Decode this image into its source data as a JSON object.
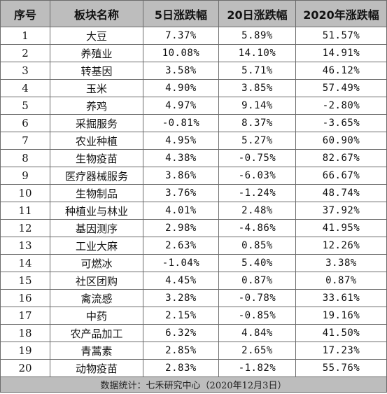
{
  "headers": [
    "序号",
    "板块名称",
    "5日涨跌幅",
    "20日涨跌幅",
    "2020年涨跌幅"
  ],
  "rows": [
    {
      "idx": "1",
      "name": "大豆",
      "d5": "7.37%",
      "d20": "5.89%",
      "y2020": "51.57%"
    },
    {
      "idx": "2",
      "name": "养殖业",
      "d5": "10.08%",
      "d20": "14.10%",
      "y2020": "14.91%"
    },
    {
      "idx": "3",
      "name": "转基因",
      "d5": "3.58%",
      "d20": "5.71%",
      "y2020": "46.12%"
    },
    {
      "idx": "4",
      "name": "玉米",
      "d5": "4.90%",
      "d20": "3.85%",
      "y2020": "57.49%"
    },
    {
      "idx": "5",
      "name": "养鸡",
      "d5": "4.97%",
      "d20": "9.14%",
      "y2020": "-2.80%"
    },
    {
      "idx": "6",
      "name": "采掘服务",
      "d5": "-0.81%",
      "d20": "8.37%",
      "y2020": "-3.65%"
    },
    {
      "idx": "7",
      "name": "农业种植",
      "d5": "4.95%",
      "d20": "5.27%",
      "y2020": "60.90%"
    },
    {
      "idx": "8",
      "name": "生物疫苗",
      "d5": "4.38%",
      "d20": "-0.75%",
      "y2020": "82.67%"
    },
    {
      "idx": "9",
      "name": "医疗器械服务",
      "d5": "3.86%",
      "d20": "-6.03%",
      "y2020": "66.67%"
    },
    {
      "idx": "10",
      "name": "生物制品",
      "d5": "3.76%",
      "d20": "-1.24%",
      "y2020": "48.74%"
    },
    {
      "idx": "11",
      "name": "种植业与林业",
      "d5": "4.01%",
      "d20": "2.48%",
      "y2020": "37.92%"
    },
    {
      "idx": "12",
      "name": "基因测序",
      "d5": "2.98%",
      "d20": "-4.86%",
      "y2020": "41.95%"
    },
    {
      "idx": "13",
      "name": "工业大麻",
      "d5": "2.63%",
      "d20": "0.85%",
      "y2020": "12.26%"
    },
    {
      "idx": "14",
      "name": "可燃冰",
      "d5": "-1.04%",
      "d20": "5.40%",
      "y2020": "3.38%"
    },
    {
      "idx": "15",
      "name": "社区团购",
      "d5": "4.45%",
      "d20": "0.87%",
      "y2020": "0.87%"
    },
    {
      "idx": "16",
      "name": "禽流感",
      "d5": "3.28%",
      "d20": "-0.78%",
      "y2020": "33.61%"
    },
    {
      "idx": "17",
      "name": "中药",
      "d5": "2.15%",
      "d20": "-0.85%",
      "y2020": "19.16%"
    },
    {
      "idx": "18",
      "name": "农产品加工",
      "d5": "6.32%",
      "d20": "4.84%",
      "y2020": "41.50%"
    },
    {
      "idx": "19",
      "name": "青蒿素",
      "d5": "2.85%",
      "d20": "2.65%",
      "y2020": "17.23%"
    },
    {
      "idx": "20",
      "name": "动物疫苗",
      "d5": "2.83%",
      "d20": "-1.82%",
      "y2020": "55.76%"
    }
  ],
  "footer": "数据统计：七禾研究中心（2020年12月3日）",
  "colors": {
    "header_bg": "#bdbdbd",
    "border": "#6b6b6b",
    "text": "#111111"
  }
}
